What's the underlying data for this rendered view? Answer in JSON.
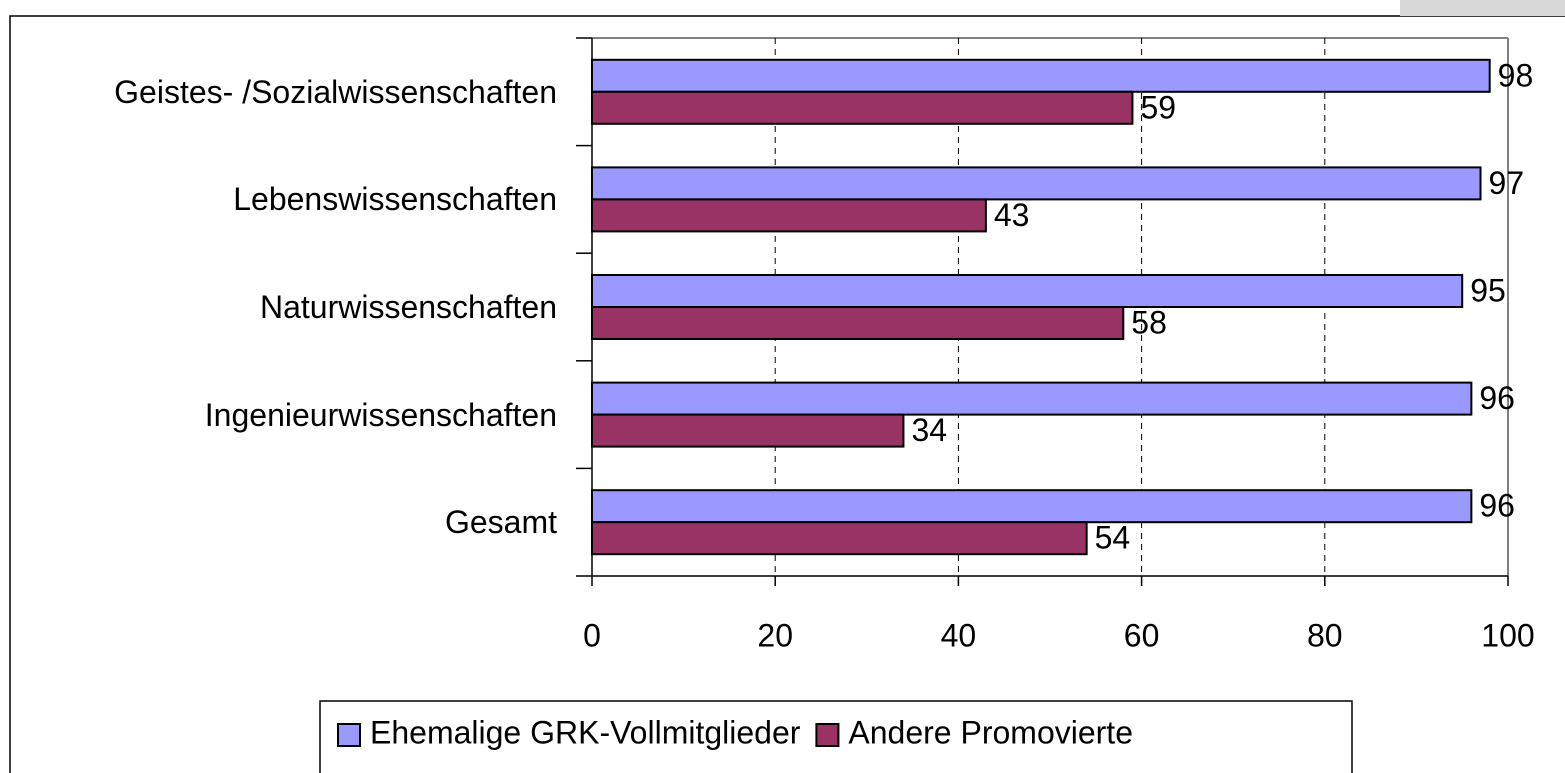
{
  "chart_data": {
    "type": "bar",
    "orientation": "horizontal",
    "categories": [
      "Geistes- /Sozialwissenschaften",
      "Lebenswissenschaften",
      "Naturwissenschaften",
      "Ingenieurwissenschaften",
      "Gesamt"
    ],
    "series": [
      {
        "name": "Ehemalige GRK-Vollmitglieder",
        "color": "#9999ff",
        "values": [
          98,
          97,
          95,
          96,
          96
        ]
      },
      {
        "name": "Andere Promovierte",
        "color": "#993366",
        "values": [
          59,
          43,
          58,
          34,
          54
        ]
      }
    ],
    "xlim": [
      0,
      100
    ],
    "xticks": [
      0,
      20,
      40,
      60,
      80,
      100
    ],
    "grid": true,
    "legend": "bottom"
  }
}
